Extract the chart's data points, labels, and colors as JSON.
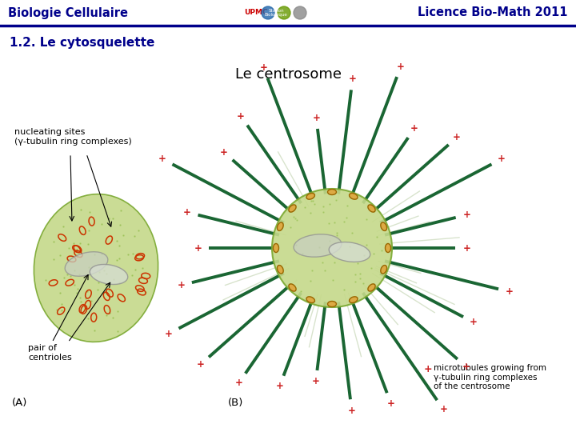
{
  "header_left": "Biologie Cellulaire",
  "header_right": "Licence Bio-Math 2011",
  "subtitle": "1.2. Le cytosquelette",
  "title": "Le centrosome",
  "header_text_color": "#00008B",
  "header_line_color": "#00008B",
  "subtitle_color": "#00008B",
  "title_color": "#000000",
  "bg_color": "#ffffff",
  "fig_width": 7.2,
  "fig_height": 5.4,
  "dpi": 100,
  "label_A_text": "(A)",
  "label_B_text": "(B)",
  "nucleating_label": "nucleating sites\n(γ-tubulin ring complexes)",
  "centrioles_label": "pair of\ncentrioles",
  "microtubules_label": "microtubules growing from\nγ-tubulin ring complexes\nof the centrosome"
}
